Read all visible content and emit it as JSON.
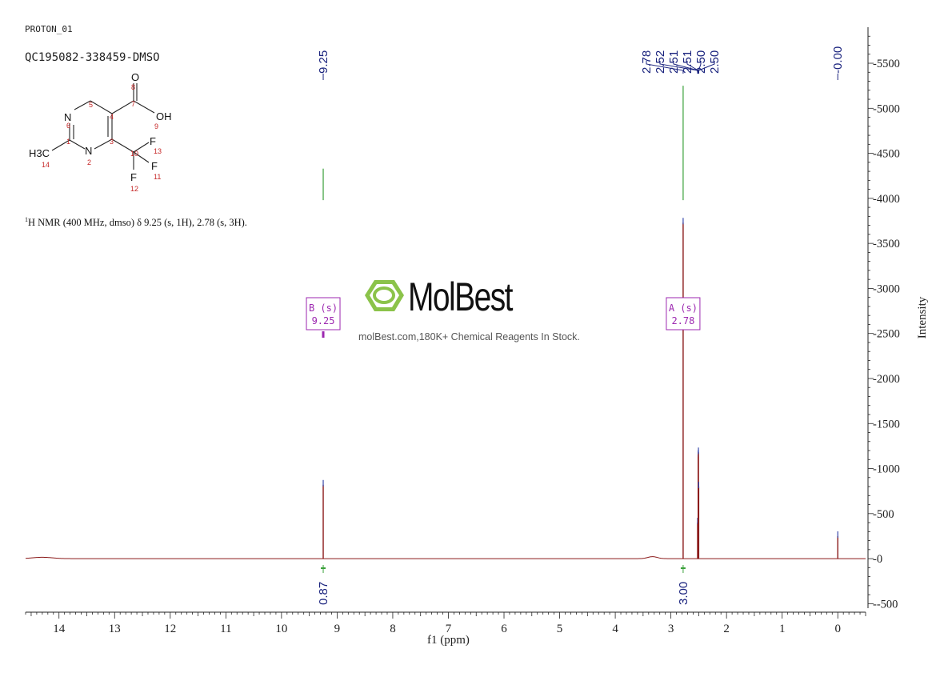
{
  "header": {
    "experiment": "PROTON_01",
    "sample": "QC195082-338459-DMSO"
  },
  "nmr_summary": {
    "sup": "1",
    "text": "H NMR (400 MHz, dmso) δ 9.25 (s, 1H), 2.78 (s, 3H)."
  },
  "structure": {
    "atoms": [
      "O",
      "OH",
      "N",
      "N",
      "H3C",
      "F",
      "F",
      "F"
    ],
    "numbers": [
      "8",
      "7",
      "9",
      "5",
      "4",
      "6",
      "1",
      "3",
      "10",
      "13",
      "2",
      "11",
      "14",
      "12"
    ]
  },
  "watermark": {
    "brand": "MolBest",
    "tagline": "molBest.com,180K+ Chemical Reagents In Stock."
  },
  "chart_data": {
    "type": "line",
    "title": "",
    "xlabel": "f1 (ppm)",
    "ylabel": "Intensity",
    "xlim": [
      14.6,
      -0.5
    ],
    "ylim": [
      -550,
      5900
    ],
    "x_ticks": [
      14,
      13,
      12,
      11,
      10,
      9,
      8,
      7,
      6,
      5,
      4,
      3,
      2,
      1,
      0
    ],
    "y_ticks": [
      5500,
      5000,
      4500,
      4000,
      3500,
      3000,
      2500,
      2000,
      1500,
      1000,
      500,
      0,
      -500
    ],
    "grid": false,
    "peaks": [
      {
        "ppm": 9.25,
        "height": 820
      },
      {
        "ppm": 2.78,
        "height": 3730
      },
      {
        "ppm": 2.52,
        "height": 400
      },
      {
        "ppm": 2.51,
        "height": 1150
      },
      {
        "ppm": 2.505,
        "height": 1180
      },
      {
        "ppm": 2.5,
        "height": 800
      },
      {
        "ppm": 0.0,
        "height": 250
      }
    ],
    "baseline_humps": [
      {
        "ppm": 14.3,
        "height": 15,
        "width": 0.25
      },
      {
        "ppm": 3.33,
        "height": 22,
        "width": 0.12
      }
    ],
    "peak_labels": [
      "9.25",
      "2.78",
      "2.52",
      "2.51",
      "2.51",
      "2.50",
      "2.50",
      "-0.00"
    ],
    "multiplets": [
      {
        "label": "B (s)",
        "shift": "9.25"
      },
      {
        "label": "A (s)",
        "shift": "2.78"
      }
    ],
    "integrations": [
      {
        "ppm": 9.25,
        "value": "0.87"
      },
      {
        "ppm": 2.78,
        "value": "3.00"
      }
    ],
    "integral_curves": [
      {
        "ppm": 9.25,
        "from": 3980,
        "to": 4330
      },
      {
        "ppm": 2.78,
        "from": 3980,
        "to": 5250
      }
    ],
    "colors": {
      "spectrum": "#8b1a1a",
      "integral": "#3aa13a",
      "labels": "#1a237e",
      "multiplet": "#9c27b0",
      "axis": "#222222"
    }
  }
}
